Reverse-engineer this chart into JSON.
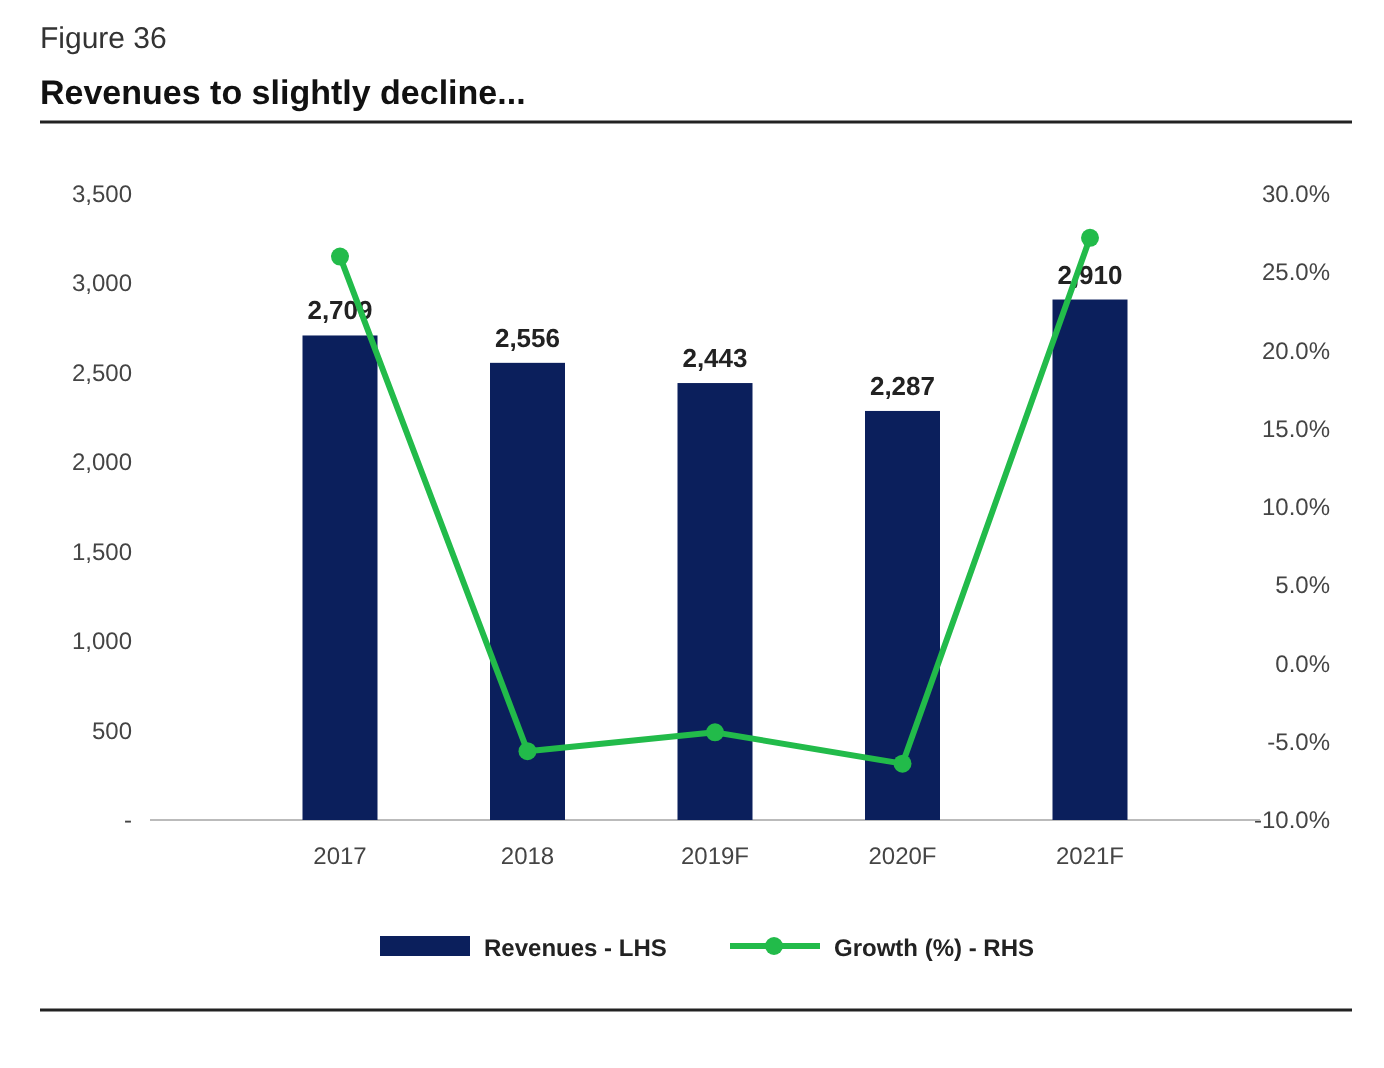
{
  "chart_data": {
    "type": "bar",
    "subtitle": "Figure 36",
    "title": "Revenues to slightly decline...",
    "categories": [
      "2017",
      "2018",
      "2019F",
      "2020F",
      "2021F"
    ],
    "series": [
      {
        "name": "Revenues - LHS",
        "color": "#0b1f5c",
        "values": [
          2709,
          2556,
          2443,
          2287,
          2910
        ],
        "value_labels": [
          "2,709",
          "2,556",
          "2,443",
          "2,287",
          "2,910"
        ]
      },
      {
        "name": "Growth (%) - RHS",
        "type": "line",
        "axis": "y2",
        "color": "#22bb4a",
        "values": [
          26.0,
          -5.6,
          -4.4,
          -6.4,
          27.2
        ]
      }
    ],
    "ylim": [
      0,
      3500
    ],
    "yticks": [
      {
        "value": 0,
        "label": "-"
      },
      500,
      {
        "value": 1000,
        "label": "1,000"
      },
      {
        "value": 1500,
        "label": "1,500"
      },
      {
        "value": 2000,
        "label": "2,000"
      },
      {
        "value": 2500,
        "label": "2,500"
      },
      {
        "value": 3000,
        "label": "3,000"
      },
      {
        "value": 3500,
        "label": "3,500"
      }
    ],
    "y2lim": [
      -10,
      30
    ],
    "y2ticks": [
      {
        "value": -10,
        "label": "-10.0%"
      },
      {
        "value": -5,
        "label": "-5.0%"
      },
      {
        "value": 0,
        "label": "0.0%"
      },
      {
        "value": 5,
        "label": "5.0%"
      },
      {
        "value": 10,
        "label": "10.0%"
      },
      {
        "value": 15,
        "label": "15.0%"
      },
      {
        "value": 20,
        "label": "20.0%"
      },
      {
        "value": 25,
        "label": "25.0%"
      },
      {
        "value": 30,
        "label": "30.0%"
      }
    ],
    "marker": "circle",
    "grid": false,
    "legend": "bottom"
  }
}
